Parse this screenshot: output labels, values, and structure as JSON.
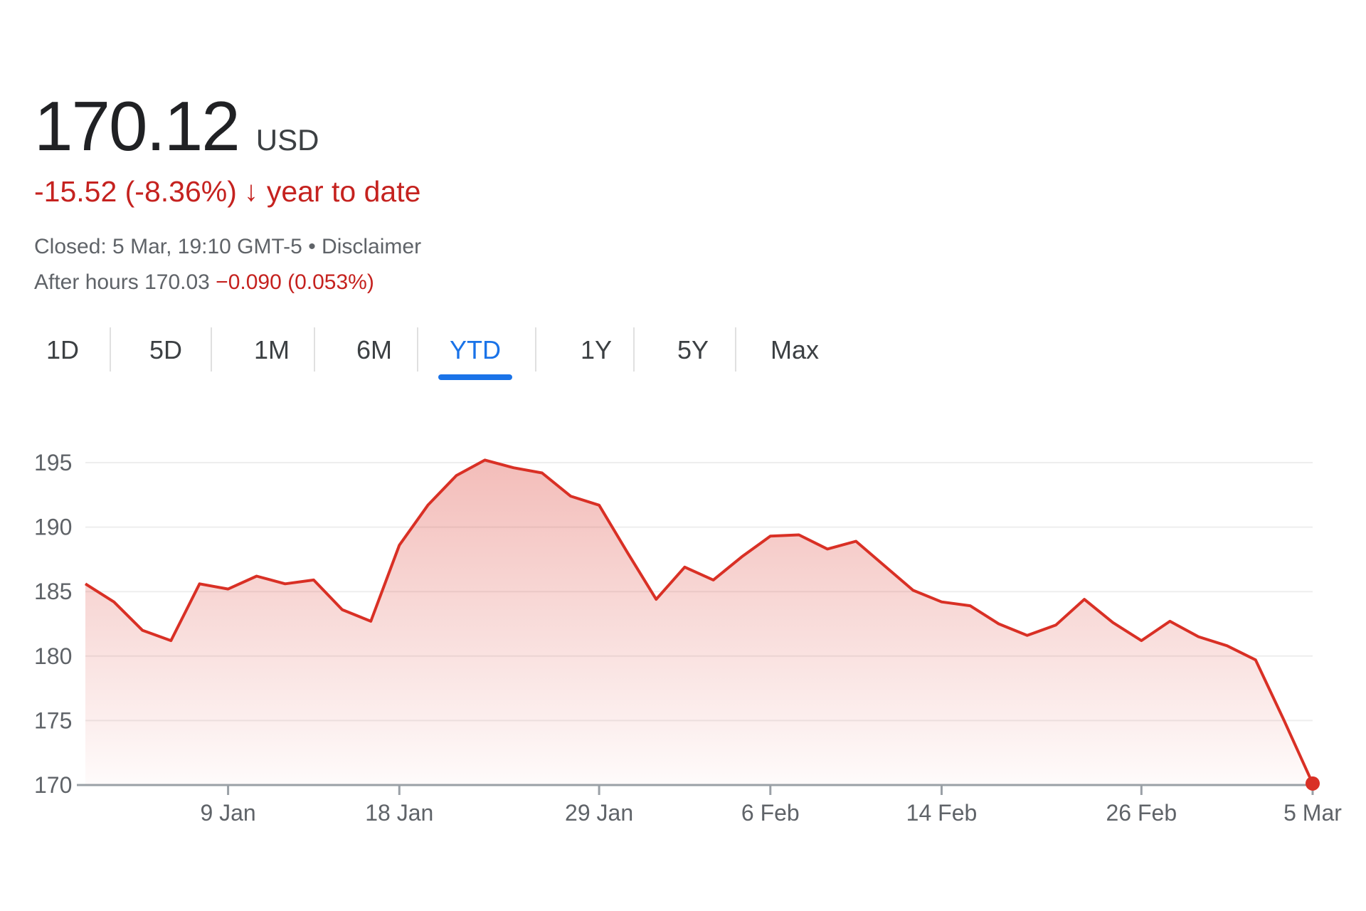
{
  "quote": {
    "price": "170.12",
    "currency": "USD",
    "change": "-15.52 (-8.36%)",
    "change_arrow": "↓",
    "period_label": "year to date",
    "closed": "Closed: 5 Mar, 19:10 GMT-5",
    "separator": "•",
    "disclaimer": "Disclaimer",
    "after_hours_label": "After hours 170.03",
    "after_hours_change": "−0.090 (0.053%)"
  },
  "tabs": [
    {
      "label": "1D",
      "active": false
    },
    {
      "label": "5D",
      "active": false
    },
    {
      "label": "1M",
      "active": false
    },
    {
      "label": "6M",
      "active": false
    },
    {
      "label": "YTD",
      "active": true
    },
    {
      "label": "1Y",
      "active": false
    },
    {
      "label": "5Y",
      "active": false
    },
    {
      "label": "Max",
      "active": false
    }
  ],
  "colors": {
    "line": "#d93025",
    "accent": "#1a73e8",
    "negative": "#c5221f"
  },
  "chart_data": {
    "type": "area",
    "grid": true,
    "ylim": [
      170,
      195
    ],
    "y_ticks": [
      195,
      190,
      185,
      180,
      175,
      170
    ],
    "x_tick_labels": [
      "9 Jan",
      "18 Jan",
      "29 Jan",
      "6 Feb",
      "14 Feb",
      "26 Feb",
      "5 Mar"
    ],
    "x_tick_index": [
      5,
      11,
      18,
      24,
      30,
      37,
      43
    ],
    "series": [
      {
        "values": [
          185.6,
          184.2,
          182.0,
          181.2,
          185.6,
          185.2,
          186.2,
          185.6,
          185.9,
          183.6,
          182.7,
          188.6,
          191.7,
          194.0,
          195.2,
          194.6,
          194.2,
          192.4,
          191.7,
          188.0,
          184.4,
          186.9,
          185.9,
          187.7,
          189.3,
          189.4,
          188.3,
          188.9,
          187.0,
          185.1,
          184.2,
          183.9,
          182.5,
          181.6,
          182.4,
          184.4,
          182.6,
          181.2,
          182.7,
          181.5,
          180.8,
          179.7,
          175.0,
          170.12
        ]
      }
    ]
  }
}
